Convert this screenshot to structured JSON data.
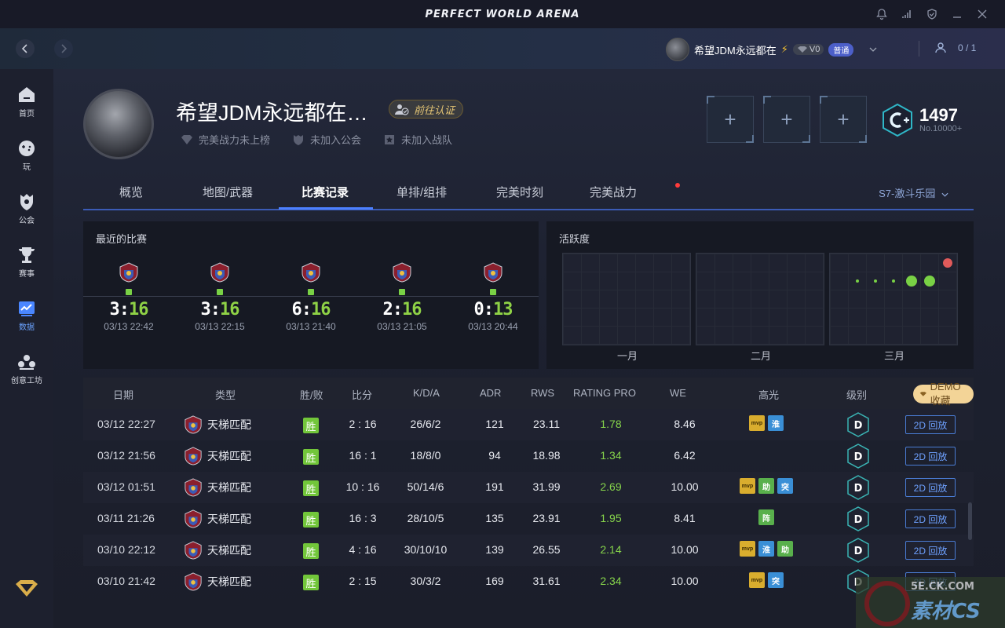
{
  "app": {
    "title": "PERFECT WORLD ARENA"
  },
  "user": {
    "name": "希望JDM永远都在",
    "bolt": "⚡",
    "vip": "V0",
    "tier": "普通",
    "friends": "0 / 1"
  },
  "sidebar": {
    "items": [
      {
        "label": "首页",
        "icon": "home-icon"
      },
      {
        "label": "玩",
        "icon": "gamepad-icon"
      },
      {
        "label": "公会",
        "icon": "guild-icon"
      },
      {
        "label": "赛事",
        "icon": "trophy-icon"
      },
      {
        "label": "数据",
        "icon": "chart-icon"
      },
      {
        "label": "创意工坊",
        "icon": "workshop-icon"
      }
    ]
  },
  "profile": {
    "name": "希望JDM永远都在…",
    "verify_label": "前往认证",
    "meta": [
      "完美战力未上榜",
      "未加入公会",
      "未加入战队"
    ],
    "slots": [
      "+",
      "+",
      "+"
    ],
    "rank_score": "1497",
    "rank_sub": "No.10000+"
  },
  "tabs": [
    "概览",
    "地图/武器",
    "比赛记录",
    "单排/组排",
    "完美时刻",
    "完美战力"
  ],
  "season": "S7-激斗乐园",
  "recent": {
    "title": "最近的比赛",
    "matches": [
      {
        "a": "3",
        "b": "16",
        "date": "03/13 22:42"
      },
      {
        "a": "3",
        "b": "16",
        "date": "03/13 22:15"
      },
      {
        "a": "6",
        "b": "16",
        "date": "03/13 21:40"
      },
      {
        "a": "2",
        "b": "16",
        "date": "03/13 21:05"
      },
      {
        "a": "0",
        "b": "13",
        "date": "03/13 20:44"
      }
    ]
  },
  "activity": {
    "title": "活跃度",
    "months": [
      "一月",
      "二月",
      "三月"
    ],
    "march_dots": [
      {
        "row": 0,
        "col": 6,
        "level": "red"
      },
      {
        "row": 1,
        "col": 1,
        "level": 1
      },
      {
        "row": 1,
        "col": 2,
        "level": 1
      },
      {
        "row": 1,
        "col": 3,
        "level": 1
      },
      {
        "row": 1,
        "col": 4,
        "level": 3
      },
      {
        "row": 1,
        "col": 5,
        "level": 3
      }
    ]
  },
  "table": {
    "headers": [
      "日期",
      "类型",
      "胜/败",
      "比分",
      "K/D/A",
      "ADR",
      "RWS",
      "RATING PRO",
      "WE",
      "高光",
      "级别"
    ],
    "demo_label": "DEMO 收藏",
    "win_label": "胜",
    "type_label": "天梯匹配",
    "replay_label": "2D 回放",
    "level_letter": "D",
    "rows": [
      {
        "date": "03/12 22:27",
        "score": "2 : 16",
        "kda": "26/6/2",
        "adr": "121",
        "rws": "23.11",
        "rating": "1.78",
        "we": "8.46",
        "hl": [
          "mvp",
          "淮"
        ]
      },
      {
        "date": "03/12 21:56",
        "score": "16 : 1",
        "kda": "18/8/0",
        "adr": "94",
        "rws": "18.98",
        "rating": "1.34",
        "we": "6.42",
        "hl": []
      },
      {
        "date": "03/12 01:51",
        "score": "10 : 16",
        "kda": "50/14/6",
        "adr": "191",
        "rws": "31.99",
        "rating": "2.69",
        "we": "10.00",
        "hl": [
          "mvp",
          "助",
          "突"
        ]
      },
      {
        "date": "03/11 21:26",
        "score": "16 : 3",
        "kda": "28/10/5",
        "adr": "135",
        "rws": "23.91",
        "rating": "1.95",
        "we": "8.41",
        "hl": [
          "阵"
        ]
      },
      {
        "date": "03/10 22:12",
        "score": "4 : 16",
        "kda": "30/10/10",
        "adr": "139",
        "rws": "26.55",
        "rating": "2.14",
        "we": "10.00",
        "hl": [
          "mvp",
          "淮",
          "助"
        ]
      },
      {
        "date": "03/10 21:42",
        "score": "2 : 15",
        "kda": "30/3/2",
        "adr": "169",
        "rws": "31.61",
        "rating": "2.34",
        "we": "10.00",
        "hl": [
          "mvp",
          "突"
        ]
      }
    ]
  },
  "watermark": {
    "url": "5E.CK.COM",
    "text": "素材CS"
  },
  "colors": {
    "accent": "#4c80ff",
    "win": "#72c63a",
    "rating": "#86d44b",
    "demo": "#f3d497"
  }
}
